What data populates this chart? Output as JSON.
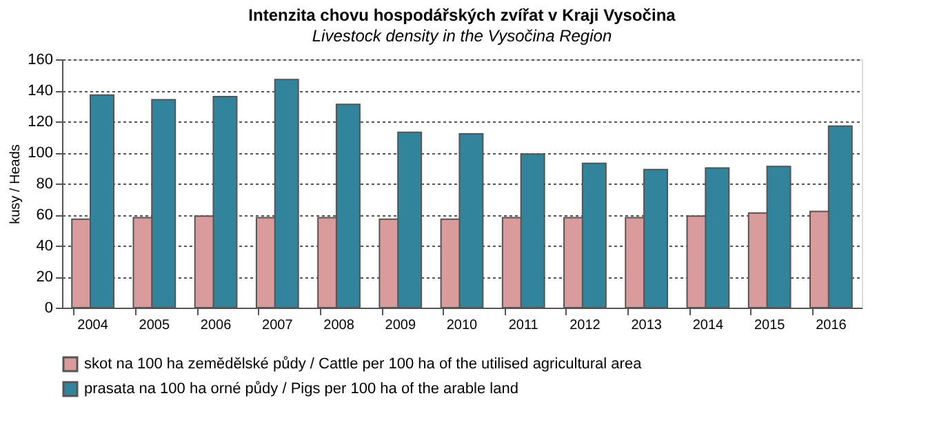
{
  "chart_data": {
    "type": "bar",
    "title": "Intenzita chovu hospodářských  zvířat v Kraji Vysočina",
    "subtitle": "Livestock density in the Vysočina Region",
    "ylabel": "kusy / Heads",
    "categories": [
      "2004",
      "2005",
      "2006",
      "2007",
      "2008",
      "2009",
      "2010",
      "2011",
      "2012",
      "2013",
      "2014",
      "2015",
      "2016"
    ],
    "series": [
      {
        "name": "skot na 100 ha zemědělské půdy / Cattle per 100 ha of the utilised agricultural area",
        "color": "#d99b9b",
        "values": [
          57,
          58,
          59,
          58,
          58,
          57,
          57,
          58,
          58,
          58,
          59,
          61,
          62
        ]
      },
      {
        "name": "prasata na 100 ha orné půdy / Pigs per 100 ha of the arable land",
        "color": "#31849b",
        "values": [
          137,
          134,
          136,
          147,
          131,
          113,
          112,
          99,
          93,
          89,
          90,
          91,
          117
        ]
      }
    ],
    "ylim": [
      0,
      160
    ],
    "yticks": [
      0,
      20,
      40,
      60,
      80,
      100,
      120,
      140,
      160
    ],
    "grid": "y",
    "legend": "bottom"
  }
}
